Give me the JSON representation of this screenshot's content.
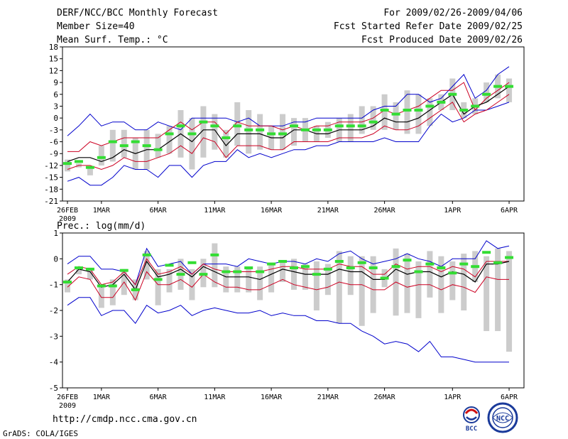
{
  "header": {
    "title": "DERF/NCC/BCC Monthly Forecast",
    "member_size": "Member Size=40",
    "variable": "Mean Surf. Temp.: °C",
    "period": "For 2009/02/26-2009/04/06",
    "started": "Fcst Started Refer Date 2009/02/25",
    "produced": "Fcst Produced Date 2009/02/26"
  },
  "footer": {
    "url": "http://cmdp.ncc.cma.gov.cn",
    "grads": "GrADS: COLA/IGES",
    "logo_left": "BCC",
    "logo_right": "NCC"
  },
  "colors": {
    "envelope": "#0000cc",
    "spread": "#cc0022",
    "mean": "#000000",
    "box": "#cccccc",
    "obs": "#33dd33"
  },
  "chart_data": [
    {
      "type": "line",
      "title": "Mean Surf. Temp.: °C",
      "x_tick_labels": [
        "26FEB",
        "1MAR",
        "6MAR",
        "11MAR",
        "16MAR",
        "21MAR",
        "26MAR",
        "1APR",
        "6APR"
      ],
      "x_tick_days": [
        0,
        3,
        8,
        13,
        18,
        23,
        28,
        34,
        39
      ],
      "year_label": "2009",
      "ylim": [
        -21,
        18
      ],
      "y_ticks": [
        18,
        15,
        12,
        9,
        6,
        3,
        0,
        -3,
        -6,
        -9,
        -12,
        -15,
        -18,
        -21
      ],
      "series": [
        {
          "name": "max",
          "values": [
            -4.5,
            -2,
            1,
            -2,
            -1,
            -1,
            -3,
            -3,
            -1,
            -2,
            -3,
            0,
            0,
            0,
            0,
            -1,
            0,
            -2,
            -2,
            -2,
            -1,
            -1,
            0,
            0,
            0,
            0,
            0,
            2,
            3,
            3,
            6,
            6,
            4,
            5,
            8,
            11,
            5,
            7,
            11,
            13
          ]
        },
        {
          "name": "upper",
          "values": [
            -8.5,
            -8.5,
            -6,
            -7,
            -6,
            -5,
            -5,
            -5,
            -5,
            -3,
            -1,
            -3,
            -1,
            -1,
            -4,
            -1,
            -2,
            -2,
            -2,
            -3,
            -2,
            -3,
            -2,
            -2,
            -1,
            -1,
            -1,
            0,
            2,
            1,
            2,
            3,
            5,
            7,
            7,
            9,
            2,
            5,
            7,
            9
          ]
        },
        {
          "name": "mean",
          "values": [
            -11,
            -10,
            -10,
            -11,
            -10,
            -8,
            -9,
            -8,
            -8,
            -6,
            -4,
            -6,
            -3,
            -3,
            -7,
            -4,
            -4,
            -4,
            -5,
            -5,
            -3,
            -3,
            -4,
            -4,
            -3,
            -3,
            -3,
            -2,
            0,
            -1,
            -1,
            0,
            2,
            4,
            6,
            1,
            3,
            4,
            6,
            8
          ]
        },
        {
          "name": "lower",
          "values": [
            -13,
            -12,
            -12,
            -13,
            -12,
            -10,
            -11,
            -11,
            -10,
            -9,
            -7,
            -9,
            -5,
            -6,
            -10,
            -7,
            -7,
            -7,
            -8,
            -8,
            -6,
            -6,
            -6,
            -6,
            -5,
            -5,
            -5,
            -4,
            -2,
            -3,
            -3,
            -2,
            0,
            2,
            4,
            -1,
            1,
            2,
            4,
            6
          ]
        },
        {
          "name": "min",
          "values": [
            -16,
            -15,
            -17,
            -17,
            -15,
            -12,
            -13,
            -13,
            -15,
            -12,
            -12,
            -15,
            -12,
            -11,
            -11,
            -8,
            -10,
            -9,
            -10,
            -9,
            -8,
            -8,
            -7,
            -7,
            -6,
            -6,
            -6,
            -6,
            -5,
            -6,
            -6,
            -6,
            -2,
            1,
            -1,
            0,
            2,
            2,
            3,
            4
          ]
        },
        {
          "name": "box_top",
          "values": [
            -10.5,
            -11.5,
            -12.5,
            -7,
            -3,
            -3,
            -5,
            -3,
            -4,
            -2,
            2,
            0,
            3,
            1,
            -3,
            4,
            2,
            1,
            -2,
            1,
            0,
            0,
            -2,
            -1,
            0,
            1,
            3,
            3,
            6,
            4,
            7,
            6,
            5,
            6,
            10,
            4,
            5,
            9,
            11,
            10
          ]
        },
        {
          "name": "box_bottom",
          "values": [
            -13.5,
            -12.5,
            -14.5,
            -12,
            -11,
            -10,
            -13,
            -13,
            -10,
            -9,
            -10,
            -13,
            -10,
            -8,
            -10,
            -7,
            -9,
            -8,
            -8,
            -8,
            -7,
            -6,
            -6,
            -5,
            -6,
            -6,
            -4,
            -3,
            -3,
            -3,
            -4,
            -4,
            -2,
            2,
            2,
            0,
            1,
            4,
            5,
            4
          ]
        },
        {
          "name": "observed",
          "values": [
            -11.5,
            -11,
            -12.5,
            -10,
            -6,
            -7,
            -6,
            -7,
            -8,
            -4,
            -2,
            -4,
            -1,
            -2,
            -5,
            -2,
            -3,
            -3,
            -4,
            -4,
            -2,
            -3,
            -3,
            -3,
            -2,
            -2,
            -2,
            -1,
            2,
            1,
            2,
            2,
            3,
            4,
            6,
            2,
            3,
            6,
            8,
            8
          ]
        }
      ]
    },
    {
      "type": "line",
      "title": "Prec.: log(mm/d)",
      "x_tick_labels": [
        "26FEB",
        "1MAR",
        "6MAR",
        "11MAR",
        "16MAR",
        "21MAR",
        "26MAR",
        "1APR",
        "6APR"
      ],
      "x_tick_days": [
        0,
        3,
        8,
        13,
        18,
        23,
        28,
        34,
        39
      ],
      "year_label": "2009",
      "ylim": [
        -5,
        1
      ],
      "y_ticks": [
        1,
        0,
        -1,
        -2,
        -3,
        -4,
        -5
      ],
      "series": [
        {
          "name": "max",
          "values": [
            -0.2,
            0.1,
            0.1,
            -0.4,
            -0.4,
            -0.5,
            -1.0,
            0.4,
            -0.3,
            -0.2,
            -0.1,
            -0.6,
            -0.2,
            -0.2,
            -0.2,
            -0.3,
            0.0,
            -0.1,
            -0.2,
            -0.1,
            -0.1,
            -0.2,
            0.0,
            -0.1,
            0.2,
            0.3,
            0.0,
            -0.2,
            -0.1,
            0.0,
            0.2,
            0.0,
            -0.1,
            -0.3,
            0.0,
            0.0,
            0.0,
            0.7,
            0.4,
            0.5
          ]
        },
        {
          "name": "upper",
          "values": [
            -0.6,
            -0.3,
            -0.4,
            -1.0,
            -0.9,
            -0.5,
            -1.0,
            0.0,
            -0.6,
            -0.5,
            -0.3,
            -0.6,
            -0.2,
            -0.4,
            -0.5,
            -0.5,
            -0.5,
            -0.5,
            -0.4,
            -0.3,
            -0.3,
            -0.4,
            -0.4,
            -0.4,
            -0.2,
            -0.3,
            -0.3,
            -0.6,
            -0.6,
            -0.2,
            -0.4,
            -0.3,
            -0.3,
            -0.5,
            -0.3,
            -0.4,
            -0.7,
            -0.1,
            -0.1,
            -0.1
          ]
        },
        {
          "name": "mean",
          "values": [
            -0.9,
            -0.4,
            -0.5,
            -1.1,
            -1.0,
            -0.6,
            -1.2,
            -0.1,
            -0.7,
            -0.6,
            -0.4,
            -0.7,
            -0.3,
            -0.5,
            -0.7,
            -0.7,
            -0.7,
            -0.8,
            -0.6,
            -0.4,
            -0.5,
            -0.6,
            -0.6,
            -0.6,
            -0.4,
            -0.5,
            -0.5,
            -0.8,
            -0.8,
            -0.4,
            -0.6,
            -0.5,
            -0.5,
            -0.7,
            -0.5,
            -0.6,
            -0.9,
            -0.2,
            -0.2,
            -0.1
          ]
        },
        {
          "name": "lower",
          "values": [
            -1.1,
            -0.7,
            -0.8,
            -1.5,
            -1.5,
            -0.9,
            -1.6,
            -0.5,
            -1.0,
            -1.0,
            -0.8,
            -1.1,
            -0.6,
            -0.9,
            -1.1,
            -1.1,
            -1.2,
            -1.2,
            -1.0,
            -0.8,
            -1.0,
            -1.1,
            -1.2,
            -1.1,
            -0.9,
            -1.0,
            -1.0,
            -1.2,
            -1.2,
            -0.9,
            -1.1,
            -1.0,
            -1.0,
            -1.2,
            -1.0,
            -1.1,
            -1.3,
            -0.7,
            -0.8,
            -0.8
          ]
        },
        {
          "name": "min",
          "values": [
            -1.8,
            -1.5,
            -1.5,
            -2.2,
            -2.0,
            -2.0,
            -2.5,
            -1.8,
            -2.1,
            -2.0,
            -1.8,
            -2.2,
            -2.0,
            -1.9,
            -2.0,
            -2.1,
            -2.1,
            -2.0,
            -2.2,
            -2.1,
            -2.2,
            -2.2,
            -2.4,
            -2.4,
            -2.5,
            -2.5,
            -2.8,
            -3.0,
            -3.3,
            -3.2,
            -3.3,
            -3.6,
            -3.2,
            -3.8,
            -3.8,
            -3.9,
            -4.0,
            -4.0,
            -4.0,
            -4.0
          ]
        },
        {
          "name": "box_top",
          "values": [
            -0.8,
            -0.4,
            -0.4,
            -1.0,
            -0.8,
            -0.4,
            -0.8,
            0.3,
            -0.4,
            -0.4,
            0.0,
            -0.4,
            0.0,
            0.6,
            -0.3,
            -0.3,
            -0.3,
            -0.3,
            -0.2,
            -0.1,
            0.0,
            -0.2,
            -0.1,
            -0.2,
            0.3,
            0.1,
            0.1,
            0.1,
            -0.4,
            0.4,
            0.2,
            -0.1,
            0.3,
            0.1,
            -0.1,
            0.2,
            0.3,
            0.1,
            0.4,
            0.3
          ]
        },
        {
          "name": "box_bottom",
          "values": [
            -1.3,
            -0.6,
            -0.8,
            -1.9,
            -1.8,
            -1.4,
            -1.6,
            -0.8,
            -1.8,
            -1.3,
            -1.2,
            -1.6,
            -1.1,
            -1.1,
            -1.3,
            -1.3,
            -1.3,
            -1.6,
            -1.3,
            -0.9,
            -1.2,
            -1.2,
            -2.0,
            -1.4,
            -2.5,
            -1.4,
            -2.6,
            -2.1,
            -1.1,
            -2.2,
            -2.1,
            -2.3,
            -1.5,
            -2.1,
            -1.6,
            -2.0,
            -0.9,
            -2.8,
            -2.8,
            -3.6
          ]
        },
        {
          "name": "observed",
          "values": [
            -0.9,
            -0.35,
            -0.4,
            -1.05,
            -1.05,
            -0.45,
            -1.2,
            0.15,
            -0.8,
            -0.25,
            -0.6,
            -0.15,
            -0.6,
            0.15,
            -0.5,
            -0.5,
            -0.35,
            -0.5,
            -0.2,
            -0.1,
            -0.35,
            -0.3,
            -0.6,
            -0.4,
            -0.1,
            -0.35,
            -0.15,
            -0.35,
            -0.75,
            -0.3,
            -0.05,
            -0.5,
            -0.2,
            -0.35,
            -0.55,
            -0.2,
            -0.3,
            0.25,
            -0.15,
            0.05
          ]
        }
      ]
    }
  ]
}
